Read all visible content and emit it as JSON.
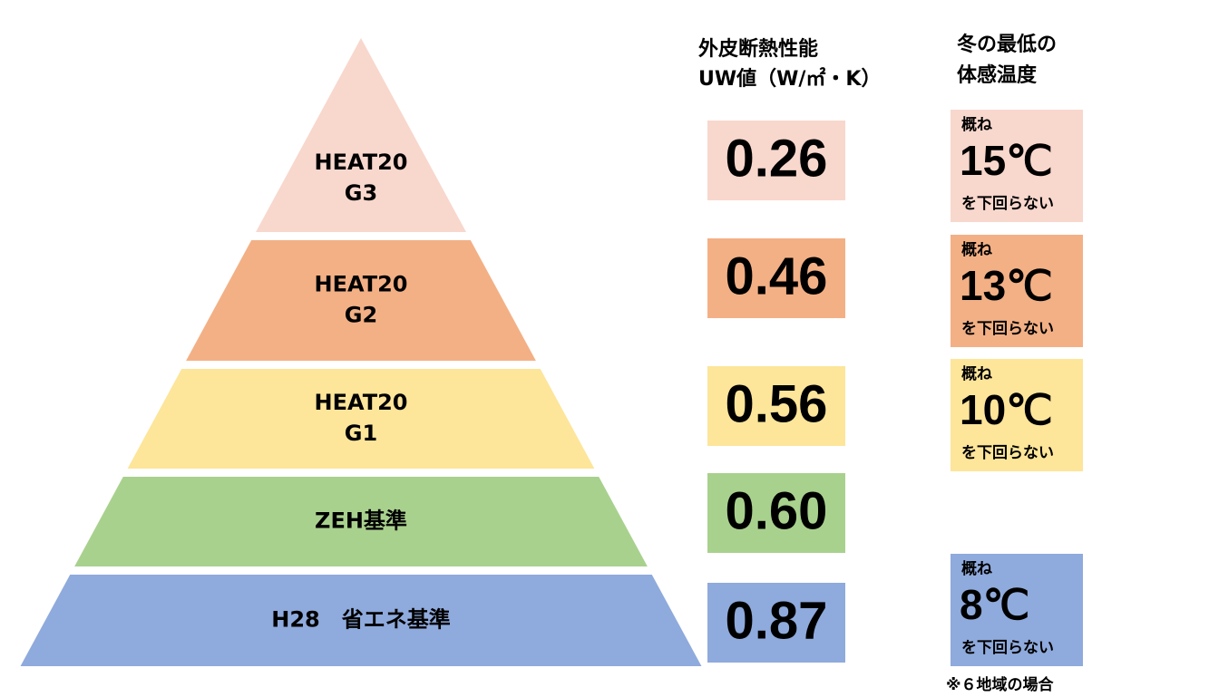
{
  "headers": {
    "uw": [
      "外皮断熱性能",
      "UW値（W/㎡・K）"
    ],
    "temp": [
      "冬の最低の",
      "体感温度"
    ]
  },
  "levels": [
    {
      "label": [
        "HEAT20",
        "G3"
      ],
      "uw": "0.26",
      "temp": {
        "prefix": "概ね",
        "value": "15℃",
        "suffix": "を下回らない"
      }
    },
    {
      "label": [
        "HEAT20",
        "G2"
      ],
      "uw": "0.46",
      "temp": {
        "prefix": "概ね",
        "value": "13℃",
        "suffix": "を下回らない"
      }
    },
    {
      "label": [
        "HEAT20",
        "G1"
      ],
      "uw": "0.56",
      "temp": {
        "prefix": "概ね",
        "value": "10℃",
        "suffix": "を下回らない"
      }
    },
    {
      "label": [
        "ZEH基準"
      ],
      "uw": "0.60"
    },
    {
      "label": [
        "H28　省エネ基準"
      ],
      "uw": "0.87",
      "temp": {
        "prefix": "概ね",
        "value": "8℃",
        "suffix": "を下回らない"
      }
    }
  ],
  "footnote": "※６地域の場合"
}
